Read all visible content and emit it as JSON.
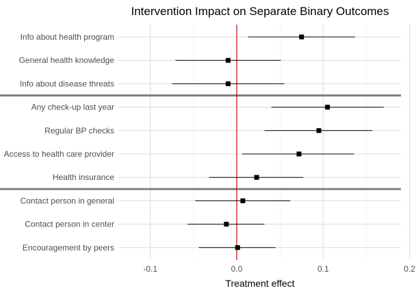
{
  "chart_data": {
    "type": "scatter",
    "subtype": "coefficient-plot",
    "title": "Intervention Impact on Separate Binary Outcomes",
    "xlabel": "Treatment effect",
    "ylabel": "",
    "xlim": [
      -0.137,
      0.19
    ],
    "xticks": [
      -0.1,
      0.0,
      0.1,
      0.2
    ],
    "xtick_labels": [
      "-0.1",
      "0.0",
      "0.1",
      "0.2"
    ],
    "grid": true,
    "reference_line": {
      "x": 0,
      "color": "#cc0000"
    },
    "group_separator_color": "#808080",
    "groups": [
      [
        0,
        1,
        2
      ],
      [
        3,
        4,
        5,
        6
      ],
      [
        7,
        8,
        9
      ]
    ],
    "categories": [
      "Info about health program",
      "General health knowledge",
      "Info about disease threats",
      "Any check-up last year",
      "Regular BP checks",
      "Access to health care provider",
      "Health insurance",
      "Contact person in general",
      "Contact person in center",
      "Encouragement by peers"
    ],
    "series": [
      {
        "estimates": [
          0.075,
          -0.01,
          -0.01,
          0.105,
          0.095,
          0.072,
          0.023,
          0.007,
          -0.012,
          0.001
        ],
        "lower": [
          0.013,
          -0.071,
          -0.075,
          0.04,
          0.032,
          0.006,
          -0.032,
          -0.048,
          -0.057,
          -0.044
        ],
        "upper": [
          0.137,
          0.051,
          0.055,
          0.17,
          0.157,
          0.136,
          0.077,
          0.062,
          0.032,
          0.045
        ],
        "color": "#000000"
      }
    ]
  }
}
